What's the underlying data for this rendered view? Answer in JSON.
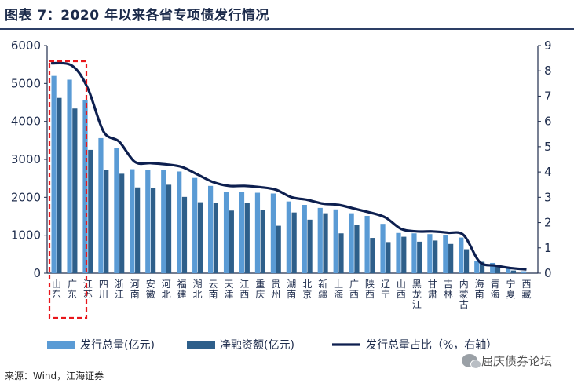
{
  "title": "图表 7：2020 年以来各省专项债发行情况",
  "source": "来源：Wind，江海证券",
  "watermark": "屈庆债券论坛",
  "chart_data": {
    "type": "bar",
    "categories": [
      "山东",
      "广东",
      "江苏",
      "四川",
      "浙江",
      "河南",
      "安徽",
      "河北",
      "福建",
      "湖北",
      "云南",
      "天津",
      "江西",
      "重庆",
      "贵州",
      "湖南",
      "北京",
      "新疆",
      "上海",
      "广西",
      "陕西",
      "辽宁",
      "山西",
      "黑龙江",
      "甘肃",
      "吉林",
      "内蒙古",
      "海南",
      "青海",
      "宁夏",
      "西藏"
    ],
    "series": [
      {
        "name": "发行总量(亿元)",
        "axis": "left",
        "color": "#5a9bd5",
        "values": [
          5200,
          5100,
          4560,
          3560,
          3300,
          2740,
          2720,
          2720,
          2680,
          2510,
          2300,
          2150,
          2150,
          2120,
          2100,
          1890,
          1800,
          1720,
          1680,
          1580,
          1510,
          1300,
          1060,
          1050,
          1030,
          1000,
          940,
          310,
          270,
          130,
          50
        ]
      },
      {
        "name": "净融资额(亿元)",
        "axis": "left",
        "color": "#2e5f8a",
        "values": [
          4620,
          4340,
          3250,
          2730,
          2620,
          2260,
          2250,
          2330,
          2010,
          1870,
          1860,
          1650,
          1850,
          1660,
          1250,
          1600,
          1410,
          1580,
          1050,
          1280,
          930,
          820,
          960,
          830,
          860,
          770,
          630,
          300,
          200,
          70,
          0
        ]
      },
      {
        "name": "发行总量占比（%，右轴）",
        "axis": "right",
        "type": "line",
        "color": "#0d1f4f",
        "values": [
          8.3,
          8.2,
          7.3,
          5.6,
          5.2,
          4.4,
          4.35,
          4.3,
          4.2,
          3.9,
          3.6,
          3.45,
          3.45,
          3.4,
          3.3,
          3.0,
          2.9,
          2.75,
          2.7,
          2.55,
          2.4,
          2.2,
          1.75,
          1.65,
          1.65,
          1.6,
          1.5,
          0.45,
          0.3,
          0.2,
          0.15
        ]
      }
    ],
    "y_left": {
      "min": 0,
      "max": 6000,
      "ticks": [
        0,
        1000,
        2000,
        3000,
        4000,
        5000,
        6000
      ]
    },
    "y_right": {
      "min": 0,
      "max": 9,
      "ticks": [
        0,
        1,
        2,
        3,
        4,
        5,
        6,
        7,
        8,
        9
      ]
    },
    "highlight_categories": [
      "山东",
      "广东"
    ],
    "legend_position": "bottom",
    "grid": false
  },
  "colors": {
    "bar1": "#5a9bd5",
    "bar2": "#2e5f8a",
    "line": "#0d1f4f",
    "highlight": "#e8161b"
  }
}
